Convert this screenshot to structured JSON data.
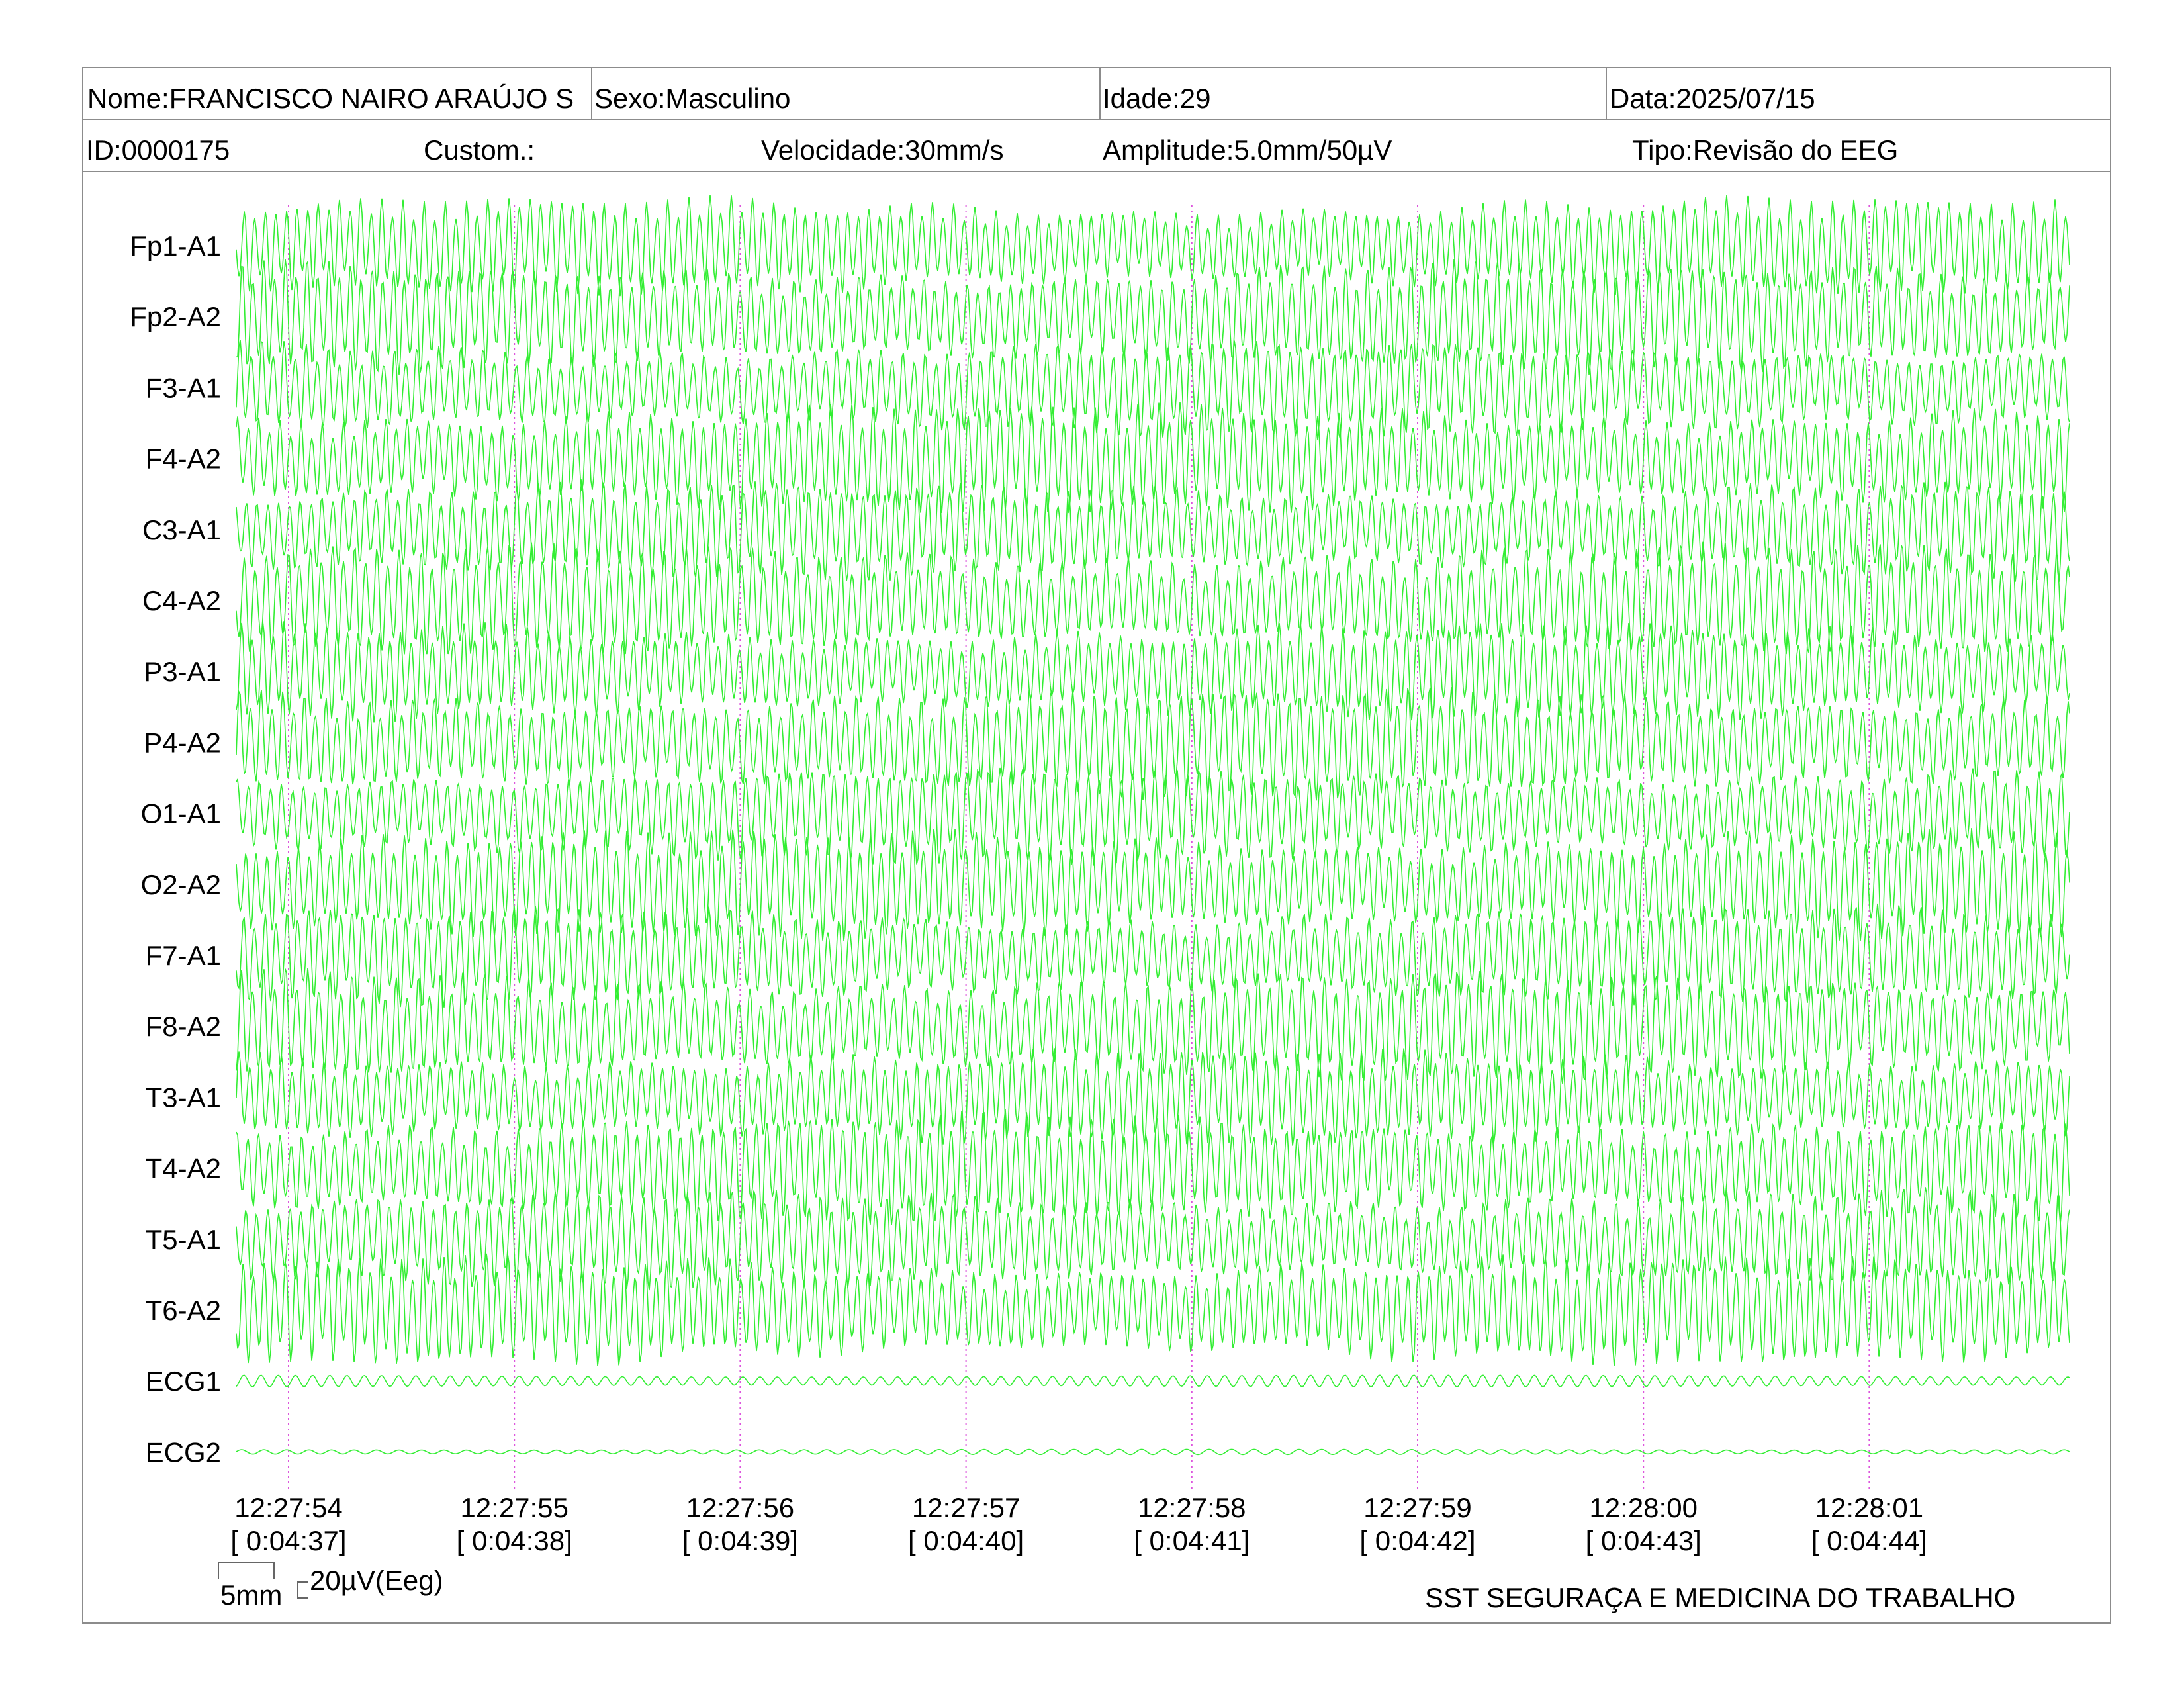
{
  "header": {
    "nome": "Nome:FRANCISCO NAIRO ARAÚJO S",
    "sexo": "Sexo:Masculino",
    "idade": "Idade:29",
    "data": "Data:2025/07/15",
    "id": "ID:0000175",
    "custom": "Custom.:",
    "velocidade": "Velocidade:30mm/s",
    "amplitude": "Amplitude:5.0mm/50µV",
    "tipo": "Tipo:Revisão do EEG"
  },
  "trace_color": "#33ee33",
  "marker_color": "#dd55dd",
  "channels": [
    "Fp1-A1",
    "Fp2-A2",
    "F3-A1",
    "F4-A2",
    "C3-A1",
    "C4-A2",
    "P3-A1",
    "P4-A2",
    "O1-A1",
    "O2-A2",
    "F7-A1",
    "F8-A2",
    "T3-A1",
    "T4-A2",
    "T5-A1",
    "T6-A2",
    "ECG1",
    "ECG2"
  ],
  "time_marks": [
    {
      "clock": "12:27:54",
      "elapsed": "[ 0:04:37]"
    },
    {
      "clock": "12:27:55",
      "elapsed": "[ 0:04:38]"
    },
    {
      "clock": "12:27:56",
      "elapsed": "[ 0:04:39]"
    },
    {
      "clock": "12:27:57",
      "elapsed": "[ 0:04:40]"
    },
    {
      "clock": "12:27:58",
      "elapsed": "[ 0:04:41]"
    },
    {
      "clock": "12:27:59",
      "elapsed": "[ 0:04:42]"
    },
    {
      "clock": "12:28:00",
      "elapsed": "[ 0:04:43]"
    },
    {
      "clock": "12:28:01",
      "elapsed": "[ 0:04:44]"
    }
  ],
  "scale": {
    "time": "5mm",
    "amplitude": "20µV(Eeg)"
  },
  "footer": "SST SEGURAÇA E MEDICINA DO TRABALHO"
}
